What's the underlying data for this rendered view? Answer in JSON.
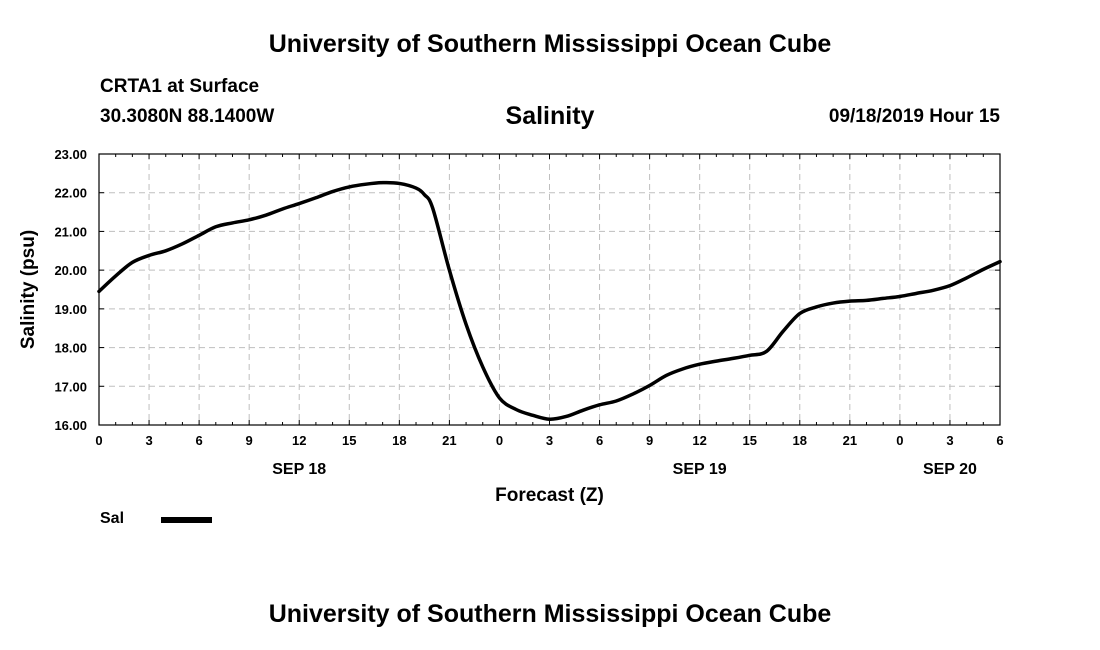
{
  "header": {
    "title": "University of Southern Mississippi Ocean Cube",
    "station": "CRTA1 at Surface",
    "coords": "30.3080N 88.1400W",
    "datetime": "09/18/2019 Hour 15"
  },
  "footer": {
    "title": "University of Southern Mississippi Ocean Cube"
  },
  "chart_data": {
    "type": "line",
    "title": "Salinity",
    "xlabel": "Forecast (Z)",
    "ylabel": "Salinity (psu)",
    "ylim": [
      16,
      23
    ],
    "xlim": [
      0,
      54
    ],
    "grid": true,
    "y_tick_values": [
      16,
      17,
      18,
      19,
      20,
      21,
      22,
      23
    ],
    "y_tick_labels": [
      "16.00",
      "17.00",
      "18.00",
      "19.00",
      "20.00",
      "21.00",
      "22.00",
      "23.00"
    ],
    "x_tick_values": [
      0,
      3,
      6,
      9,
      12,
      15,
      18,
      21,
      24,
      27,
      30,
      33,
      36,
      39,
      42,
      45,
      48,
      51,
      54
    ],
    "x_tick_labels": [
      "0",
      "3",
      "6",
      "9",
      "12",
      "15",
      "18",
      "21",
      "0",
      "3",
      "6",
      "9",
      "12",
      "15",
      "18",
      "21",
      "0",
      "3",
      "6"
    ],
    "day_labels": [
      {
        "label": "SEP 18",
        "x": 12
      },
      {
        "label": "SEP 19",
        "x": 36
      },
      {
        "label": "SEP 20",
        "x": 51
      }
    ],
    "legend": [
      {
        "name": "Sal",
        "color": "#000000"
      }
    ],
    "series": [
      {
        "name": "Sal",
        "color": "#000000",
        "x": [
          0,
          1,
          2,
          3,
          4,
          5,
          6,
          7,
          8,
          9,
          10,
          11,
          12,
          13,
          14,
          15,
          16,
          17,
          18,
          19,
          19.5,
          20,
          21,
          22,
          23,
          24,
          25,
          26,
          27,
          28,
          29,
          30,
          31,
          32,
          33,
          34,
          35,
          36,
          37,
          38,
          39,
          40,
          41,
          42,
          43,
          44,
          45,
          46,
          47,
          48,
          49,
          50,
          51,
          52,
          53,
          54
        ],
        "values": [
          19.45,
          19.85,
          20.2,
          20.38,
          20.5,
          20.68,
          20.9,
          21.12,
          21.22,
          21.3,
          21.42,
          21.58,
          21.72,
          21.87,
          22.03,
          22.15,
          22.22,
          22.26,
          22.24,
          22.12,
          21.95,
          21.6,
          20.0,
          18.6,
          17.5,
          16.7,
          16.4,
          16.25,
          16.15,
          16.22,
          16.38,
          16.52,
          16.62,
          16.8,
          17.02,
          17.28,
          17.45,
          17.57,
          17.65,
          17.72,
          17.8,
          17.9,
          18.42,
          18.88,
          19.05,
          19.15,
          19.2,
          19.22,
          19.27,
          19.32,
          19.4,
          19.48,
          19.6,
          19.8,
          20.02,
          20.22
        ]
      }
    ]
  }
}
